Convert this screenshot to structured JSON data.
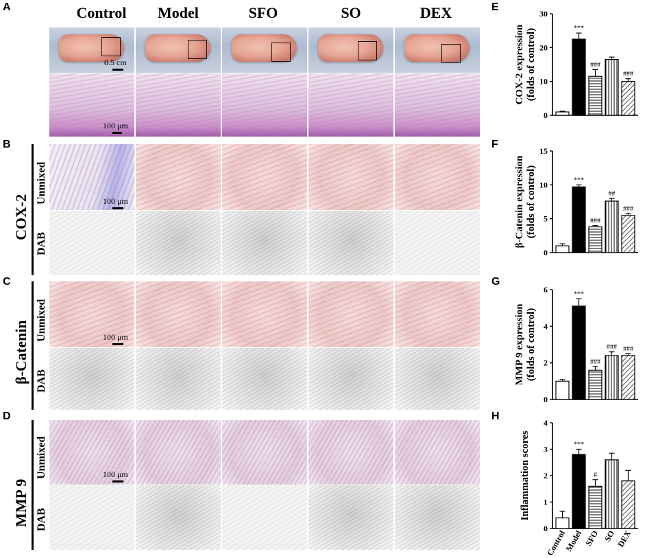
{
  "panels": {
    "A": "A",
    "B": "B",
    "C": "C",
    "D": "D",
    "E": "E",
    "F": "F",
    "G": "G",
    "H": "H"
  },
  "groups": [
    "Control",
    "Model",
    "SFO",
    "SO",
    "DEX"
  ],
  "row_labels": {
    "unmixed": "Unmixed",
    "dab": "DAB",
    "cox2": "COX-2",
    "bcatenin": "β-Catenin",
    "mmp9": "MMP 9"
  },
  "scale": {
    "photo": "0.5 cm",
    "micro": "100 μm"
  },
  "colors": {
    "model_bar": "#000000",
    "axis": "#000000",
    "background": "#ffffff"
  },
  "chart_data": [
    {
      "type": "bar",
      "panel": "E",
      "categories": [
        "Control",
        "Model",
        "SFO",
        "SO",
        "DEX"
      ],
      "values": [
        1.0,
        22.5,
        11.5,
        16.5,
        10.0
      ],
      "errors": [
        0.2,
        1.8,
        2.0,
        0.7,
        0.8
      ],
      "annotations": [
        "",
        "***",
        "###",
        "",
        "###"
      ],
      "patterns": [
        "open",
        "filled",
        "horizontal",
        "vertical",
        "diagonal"
      ],
      "ylabel": "COX-2 expression (folds of control)",
      "ylim": [
        0,
        30
      ],
      "yticks": [
        0,
        10,
        20,
        30
      ]
    },
    {
      "type": "bar",
      "panel": "F",
      "categories": [
        "Control",
        "Model",
        "SFO",
        "SO",
        "DEX"
      ],
      "values": [
        1.0,
        9.7,
        3.8,
        7.6,
        5.5
      ],
      "errors": [
        0.3,
        0.3,
        0.2,
        0.4,
        0.3
      ],
      "annotations": [
        "",
        "***",
        "###",
        "##",
        "###"
      ],
      "patterns": [
        "open",
        "filled",
        "horizontal",
        "vertical",
        "diagonal"
      ],
      "ylabel": "β-Catenin expression (folds of control)",
      "ylim": [
        0,
        15
      ],
      "yticks": [
        0,
        5,
        10,
        15
      ]
    },
    {
      "type": "bar",
      "panel": "G",
      "categories": [
        "Control",
        "Model",
        "SFO",
        "SO",
        "DEX"
      ],
      "values": [
        1.0,
        5.1,
        1.6,
        2.4,
        2.4
      ],
      "errors": [
        0.1,
        0.4,
        0.2,
        0.2,
        0.1
      ],
      "annotations": [
        "",
        "***",
        "###",
        "###",
        "###"
      ],
      "patterns": [
        "open",
        "filled",
        "horizontal",
        "vertical",
        "diagonal"
      ],
      "ylabel": "MMP 9 expression (folds of control)",
      "ylim": [
        0,
        6
      ],
      "yticks": [
        0,
        2,
        4,
        6
      ]
    },
    {
      "type": "bar",
      "panel": "H",
      "categories": [
        "Control",
        "Model",
        "SFO",
        "SO",
        "DEX"
      ],
      "values": [
        0.4,
        2.8,
        1.6,
        2.6,
        1.8
      ],
      "errors": [
        0.25,
        0.2,
        0.25,
        0.25,
        0.4
      ],
      "annotations": [
        "",
        "***",
        "#",
        "",
        ""
      ],
      "patterns": [
        "open",
        "filled",
        "horizontal",
        "vertical",
        "diagonal"
      ],
      "ylabel": "Inflammation scores",
      "ylim": [
        0,
        4
      ],
      "yticks": [
        0,
        1,
        2,
        3,
        4
      ],
      "show_category_labels": true
    }
  ]
}
